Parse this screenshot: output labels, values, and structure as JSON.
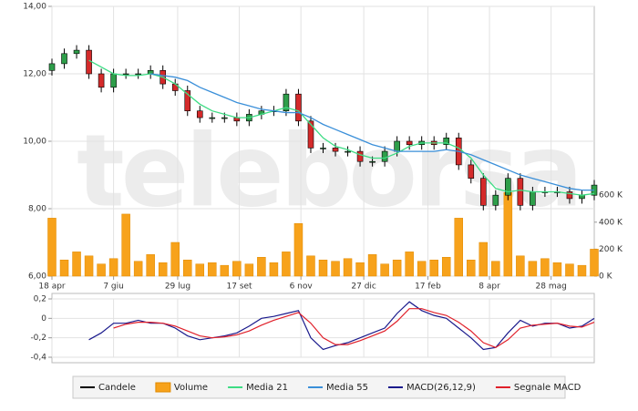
{
  "watermark": "teleborsa",
  "chart_data": [
    {
      "type": "candlestick",
      "x": [
        0,
        10,
        20,
        30,
        40,
        50,
        60,
        70,
        80,
        90,
        100,
        110,
        120,
        130,
        140,
        150,
        160,
        170,
        180,
        190,
        200,
        210,
        220,
        230,
        240,
        250,
        260,
        270,
        280,
        290,
        300,
        310,
        320,
        330,
        340,
        350,
        360,
        370,
        380,
        390,
        400,
        410,
        420,
        430,
        440
      ],
      "xlim": [
        0,
        440
      ],
      "xticks": [
        {
          "value": 0,
          "label": "18 apr"
        },
        {
          "value": 50,
          "label": "7 giu"
        },
        {
          "value": 102,
          "label": "29 lug"
        },
        {
          "value": 152,
          "label": "17 set"
        },
        {
          "value": 202,
          "label": "6 nov"
        },
        {
          "value": 253,
          "label": "27 dic"
        },
        {
          "value": 305,
          "label": "17 feb"
        },
        {
          "value": 355,
          "label": "8 apr"
        },
        {
          "value": 405,
          "label": "28 mag"
        }
      ],
      "ylim": [
        6,
        14
      ],
      "yticks": [
        {
          "value": 6,
          "label": "6,00"
        },
        {
          "value": 8,
          "label": "8,00"
        },
        {
          "value": 10,
          "label": "10,00"
        },
        {
          "value": 12,
          "label": "12,00"
        },
        {
          "value": 14,
          "label": "14,00"
        }
      ],
      "y2lim": [
        0,
        2000000
      ],
      "y2ticks": [
        {
          "value": 0,
          "label": "0 K"
        },
        {
          "value": 200000,
          "label": "200 K"
        },
        {
          "value": 400000,
          "label": "400 K"
        },
        {
          "value": 600000,
          "label": "600 K"
        }
      ],
      "grid": true,
      "series": [
        {
          "name": "Candele",
          "color": "#000000",
          "up_color": "#2e9e4a",
          "down_color": "#d42a2a",
          "open": [
            12.1,
            12.3,
            12.6,
            12.7,
            12.0,
            11.6,
            12.0,
            12.0,
            12.0,
            12.1,
            11.7,
            11.5,
            10.9,
            10.7,
            10.7,
            10.7,
            10.6,
            10.8,
            10.9,
            10.9,
            11.4,
            10.6,
            9.8,
            9.8,
            9.7,
            9.7,
            9.4,
            9.4,
            9.7,
            10.0,
            9.9,
            10.0,
            9.9,
            10.1,
            9.3,
            8.9,
            8.1,
            8.4,
            8.9,
            8.1,
            8.5,
            8.5,
            8.5,
            8.3,
            8.4
          ],
          "high": [
            12.45,
            12.75,
            12.85,
            12.85,
            12.15,
            12.15,
            12.15,
            12.15,
            12.25,
            12.25,
            11.85,
            11.65,
            11.05,
            10.85,
            10.85,
            10.85,
            10.95,
            11.05,
            11.05,
            11.55,
            11.55,
            10.75,
            9.95,
            9.95,
            9.85,
            9.85,
            9.55,
            9.85,
            10.15,
            10.15,
            10.15,
            10.15,
            10.25,
            10.25,
            9.45,
            9.05,
            8.55,
            9.05,
            9.05,
            8.65,
            8.65,
            8.65,
            8.65,
            8.55,
            8.85
          ],
          "low": [
            11.95,
            12.15,
            12.45,
            11.85,
            11.45,
            11.45,
            11.85,
            11.85,
            11.85,
            11.55,
            11.35,
            10.75,
            10.55,
            10.55,
            10.55,
            10.45,
            10.45,
            10.65,
            10.75,
            10.75,
            10.45,
            9.65,
            9.65,
            9.55,
            9.55,
            9.25,
            9.25,
            9.25,
            9.55,
            9.75,
            9.75,
            9.75,
            9.75,
            9.15,
            8.75,
            7.95,
            7.95,
            8.25,
            7.95,
            7.95,
            8.35,
            8.35,
            8.15,
            8.15,
            8.25
          ],
          "close": [
            12.3,
            12.6,
            12.7,
            12.0,
            11.6,
            12.0,
            12.0,
            12.0,
            12.1,
            11.7,
            11.5,
            10.9,
            10.7,
            10.7,
            10.7,
            10.6,
            10.8,
            10.9,
            10.9,
            11.4,
            10.6,
            9.8,
            9.8,
            9.7,
            9.7,
            9.4,
            9.4,
            9.7,
            10.0,
            9.9,
            10.0,
            9.9,
            10.1,
            9.3,
            8.9,
            8.1,
            8.4,
            8.9,
            8.1,
            8.5,
            8.5,
            8.5,
            8.3,
            8.4,
            8.7
          ]
        },
        {
          "name": "Volume",
          "type": "bar",
          "axis": "y2",
          "color": "#f7a21b",
          "values": [
            430000,
            120000,
            180000,
            150000,
            90000,
            130000,
            460000,
            110000,
            160000,
            100000,
            250000,
            120000,
            90000,
            100000,
            80000,
            110000,
            90000,
            140000,
            100000,
            180000,
            390000,
            150000,
            120000,
            110000,
            130000,
            100000,
            160000,
            90000,
            120000,
            180000,
            110000,
            120000,
            140000,
            430000,
            120000,
            250000,
            110000,
            620000,
            150000,
            110000,
            130000,
            100000,
            90000,
            80000,
            200000
          ]
        },
        {
          "name": "Media 21",
          "type": "line",
          "color": "#3ddc84",
          "values": [
            null,
            null,
            null,
            12.4,
            12.2,
            12.0,
            11.95,
            11.95,
            12.0,
            11.9,
            11.7,
            11.4,
            11.1,
            10.9,
            10.8,
            10.7,
            10.7,
            10.8,
            10.9,
            11.0,
            10.9,
            10.5,
            10.1,
            9.85,
            9.75,
            9.6,
            9.5,
            9.5,
            9.65,
            9.85,
            9.95,
            9.95,
            9.95,
            9.8,
            9.5,
            9.0,
            8.6,
            8.5,
            8.55,
            8.5,
            8.5,
            8.5,
            8.45,
            8.4,
            8.45
          ]
        },
        {
          "name": "Media 55",
          "type": "line",
          "color": "#3a8fd9",
          "values": [
            null,
            null,
            null,
            null,
            null,
            null,
            null,
            null,
            12.0,
            11.95,
            11.9,
            11.8,
            11.6,
            11.45,
            11.3,
            11.15,
            11.05,
            10.95,
            10.9,
            10.85,
            10.85,
            10.7,
            10.5,
            10.35,
            10.2,
            10.05,
            9.9,
            9.8,
            9.7,
            9.7,
            9.7,
            9.7,
            9.75,
            9.7,
            9.6,
            9.45,
            9.3,
            9.15,
            9.0,
            8.9,
            8.8,
            8.7,
            8.6,
            8.55,
            8.55
          ]
        }
      ]
    },
    {
      "type": "line",
      "x": [
        0,
        10,
        20,
        30,
        40,
        50,
        60,
        70,
        80,
        90,
        100,
        110,
        120,
        130,
        140,
        150,
        160,
        170,
        180,
        190,
        200,
        210,
        220,
        230,
        240,
        250,
        260,
        270,
        280,
        290,
        300,
        310,
        320,
        330,
        340,
        350,
        360,
        370,
        380,
        390,
        400,
        410,
        420,
        430,
        440
      ],
      "xlim": [
        0,
        440
      ],
      "ylim": [
        -0.4,
        0.2
      ],
      "yticks": [
        {
          "value": 0.2,
          "label": "0,2"
        },
        0,
        {
          "value": -0.2,
          "label": "-0,2"
        },
        {
          "value": -0.4,
          "label": "-0,4"
        }
      ],
      "grid": true,
      "series": [
        {
          "name": "MACD(26,12,9)",
          "color": "#1a1a8c",
          "values": [
            null,
            null,
            null,
            -0.22,
            -0.15,
            -0.05,
            -0.05,
            -0.02,
            -0.05,
            -0.05,
            -0.1,
            -0.18,
            -0.22,
            -0.2,
            -0.18,
            -0.15,
            -0.08,
            0,
            0.02,
            0.05,
            0.08,
            -0.2,
            -0.32,
            -0.28,
            -0.25,
            -0.2,
            -0.15,
            -0.1,
            0.05,
            0.17,
            0.08,
            0.03,
            0,
            -0.1,
            -0.2,
            -0.32,
            -0.3,
            -0.15,
            -0.02,
            -0.08,
            -0.05,
            -0.05,
            -0.1,
            -0.08,
            0
          ]
        },
        {
          "name": "Segnale MACD",
          "color": "#e0202a",
          "values": [
            null,
            null,
            null,
            null,
            null,
            -0.1,
            -0.06,
            -0.04,
            -0.04,
            -0.05,
            -0.08,
            -0.13,
            -0.18,
            -0.2,
            -0.19,
            -0.17,
            -0.13,
            -0.07,
            -0.02,
            0.02,
            0.06,
            -0.05,
            -0.2,
            -0.27,
            -0.27,
            -0.23,
            -0.18,
            -0.13,
            -0.03,
            0.1,
            0.1,
            0.06,
            0.03,
            -0.04,
            -0.13,
            -0.25,
            -0.3,
            -0.22,
            -0.1,
            -0.07,
            -0.06,
            -0.05,
            -0.08,
            -0.09,
            -0.04
          ]
        }
      ]
    }
  ]
}
